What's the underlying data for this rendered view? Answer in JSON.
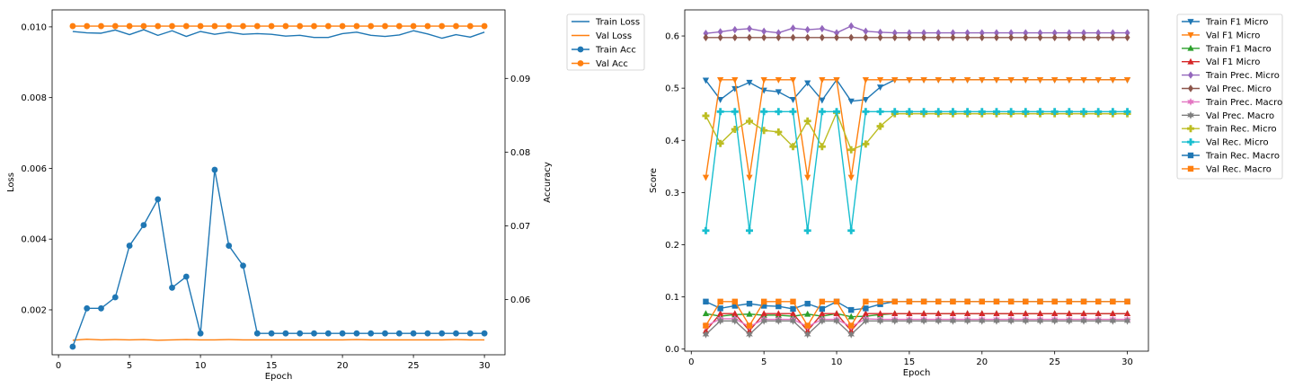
{
  "chart_data": [
    {
      "type": "line",
      "xlabel": "Epoch",
      "ylabel": "Loss",
      "y2label": "Accuracy",
      "x": [
        1,
        2,
        3,
        4,
        5,
        6,
        7,
        8,
        9,
        10,
        11,
        12,
        13,
        14,
        15,
        16,
        17,
        18,
        19,
        20,
        21,
        22,
        23,
        24,
        25,
        26,
        27,
        28,
        29,
        30
      ],
      "xticks": [
        0,
        5,
        10,
        15,
        20,
        25,
        30
      ],
      "xlim": [
        -0.45,
        31.45
      ],
      "ylim": [
        0.00073,
        0.01048
      ],
      "yticks": [
        0.002,
        0.004,
        0.006,
        0.008,
        0.01
      ],
      "y2lim": [
        0.0525,
        0.0993
      ],
      "y2ticks": [
        0.06,
        0.07,
        0.08,
        0.09
      ],
      "legend_position": "outside right",
      "series": [
        {
          "name": "Train Loss",
          "axis": "left",
          "color": "#1f77b4",
          "marker": "none",
          "values": [
            0.00987,
            0.00983,
            0.00982,
            0.00991,
            0.00978,
            0.00992,
            0.00976,
            0.00989,
            0.00973,
            0.00987,
            0.00979,
            0.00985,
            0.00979,
            0.00981,
            0.00979,
            0.00974,
            0.00976,
            0.0097,
            0.0097,
            0.00981,
            0.00985,
            0.00976,
            0.00973,
            0.00977,
            0.00989,
            0.0098,
            0.00968,
            0.00978,
            0.00971,
            0.00985
          ]
        },
        {
          "name": "Val Loss",
          "axis": "left",
          "color": "#ff7f0e",
          "marker": "none",
          "values": [
            0.00114,
            0.00117,
            0.00115,
            0.00116,
            0.00115,
            0.00116,
            0.00114,
            0.00115,
            0.00116,
            0.00115,
            0.00115,
            0.00116,
            0.00115,
            0.00115,
            0.00115,
            0.00115,
            0.00115,
            0.00115,
            0.00115,
            0.00115,
            0.00116,
            0.00115,
            0.00115,
            0.00115,
            0.00115,
            0.00115,
            0.00115,
            0.00116,
            0.00115,
            0.00115
          ]
        },
        {
          "name": "Train Acc",
          "axis": "right",
          "color": "#1f77b4",
          "marker": "circle",
          "values": [
            0.0536,
            0.0588,
            0.0588,
            0.0603,
            0.0673,
            0.0701,
            0.0736,
            0.0616,
            0.0631,
            0.0554,
            0.0776,
            0.0673,
            0.0646,
            0.0554,
            0.0554,
            0.0554,
            0.0554,
            0.0554,
            0.0554,
            0.0554,
            0.0554,
            0.0554,
            0.0554,
            0.0554,
            0.0554,
            0.0554,
            0.0554,
            0.0554,
            0.0554,
            0.0554
          ]
        },
        {
          "name": "Val Acc",
          "axis": "right",
          "color": "#ff7f0e",
          "marker": "circle",
          "values": [
            0.0971,
            0.0971,
            0.0971,
            0.0971,
            0.0971,
            0.0971,
            0.0971,
            0.0971,
            0.0971,
            0.0971,
            0.0971,
            0.0971,
            0.0971,
            0.0971,
            0.0971,
            0.0971,
            0.0971,
            0.0971,
            0.0971,
            0.0971,
            0.0971,
            0.0971,
            0.0971,
            0.0971,
            0.0971,
            0.0971,
            0.0971,
            0.0971,
            0.0971,
            0.0971
          ]
        }
      ]
    },
    {
      "type": "line",
      "xlabel": "Epoch",
      "ylabel": "Score",
      "x": [
        1,
        2,
        3,
        4,
        5,
        6,
        7,
        8,
        9,
        10,
        11,
        12,
        13,
        14,
        15,
        16,
        17,
        18,
        19,
        20,
        21,
        22,
        23,
        24,
        25,
        26,
        27,
        28,
        29,
        30
      ],
      "xticks": [
        0,
        5,
        10,
        15,
        20,
        25,
        30
      ],
      "xlim": [
        -0.45,
        31.45
      ],
      "ylim": [
        -0.004,
        0.65
      ],
      "yticks": [
        0.0,
        0.1,
        0.2,
        0.3,
        0.4,
        0.5,
        0.6
      ],
      "legend_position": "outside right",
      "series": [
        {
          "name": "Train F1 Micro",
          "color": "#1f77b4",
          "marker": "tri-down",
          "values": [
            0.515,
            0.478,
            0.499,
            0.511,
            0.496,
            0.493,
            0.478,
            0.51,
            0.477,
            0.516,
            0.475,
            0.478,
            0.502,
            0.516,
            0.516,
            0.516,
            0.516,
            0.516,
            0.516,
            0.516,
            0.516,
            0.516,
            0.516,
            0.516,
            0.516,
            0.516,
            0.516,
            0.516,
            0.516,
            0.516
          ]
        },
        {
          "name": "Val F1 Micro",
          "color": "#ff7f0e",
          "marker": "tri-down",
          "values": [
            0.329,
            0.516,
            0.516,
            0.329,
            0.516,
            0.516,
            0.516,
            0.329,
            0.516,
            0.516,
            0.329,
            0.516,
            0.516,
            0.516,
            0.516,
            0.516,
            0.516,
            0.516,
            0.516,
            0.516,
            0.516,
            0.516,
            0.516,
            0.516,
            0.516,
            0.516,
            0.516,
            0.516,
            0.516,
            0.516
          ]
        },
        {
          "name": "Train F1 Macro",
          "color": "#2ca02c",
          "marker": "tri-up",
          "values": [
            0.068,
            0.063,
            0.066,
            0.067,
            0.065,
            0.065,
            0.063,
            0.067,
            0.063,
            0.068,
            0.062,
            0.063,
            0.066,
            0.068,
            0.068,
            0.068,
            0.068,
            0.068,
            0.068,
            0.068,
            0.068,
            0.068,
            0.068,
            0.068,
            0.068,
            0.068,
            0.068,
            0.068,
            0.068,
            0.068
          ]
        },
        {
          "name": "Val F1 Micro",
          "color": "#d62728",
          "marker": "tri-up",
          "values": [
            0.035,
            0.068,
            0.068,
            0.035,
            0.068,
            0.068,
            0.068,
            0.035,
            0.068,
            0.068,
            0.035,
            0.068,
            0.068,
            0.068,
            0.068,
            0.068,
            0.068,
            0.068,
            0.068,
            0.068,
            0.068,
            0.068,
            0.068,
            0.068,
            0.068,
            0.068,
            0.068,
            0.068,
            0.068,
            0.068
          ]
        },
        {
          "name": "Train Prec. Micro",
          "color": "#9467bd",
          "marker": "diamond",
          "values": [
            0.605,
            0.608,
            0.612,
            0.614,
            0.609,
            0.606,
            0.615,
            0.612,
            0.614,
            0.606,
            0.619,
            0.609,
            0.607,
            0.606,
            0.606,
            0.606,
            0.606,
            0.606,
            0.606,
            0.606,
            0.606,
            0.606,
            0.606,
            0.606,
            0.606,
            0.606,
            0.606,
            0.606,
            0.606,
            0.606
          ]
        },
        {
          "name": "Val Prec. Micro",
          "color": "#8c564b",
          "marker": "diamond",
          "values": [
            0.597,
            0.597,
            0.597,
            0.597,
            0.597,
            0.597,
            0.597,
            0.597,
            0.597,
            0.597,
            0.597,
            0.597,
            0.597,
            0.597,
            0.597,
            0.597,
            0.597,
            0.597,
            0.597,
            0.597,
            0.597,
            0.597,
            0.597,
            0.597,
            0.597,
            0.597,
            0.597,
            0.597,
            0.597,
            0.597
          ]
        },
        {
          "name": "Train Prec. Macro",
          "color": "#e377c2",
          "marker": "star",
          "values": [
            0.044,
            0.058,
            0.058,
            0.043,
            0.057,
            0.057,
            0.057,
            0.043,
            0.057,
            0.057,
            0.043,
            0.058,
            0.057,
            0.057,
            0.057,
            0.057,
            0.057,
            0.057,
            0.057,
            0.057,
            0.057,
            0.057,
            0.057,
            0.057,
            0.057,
            0.057,
            0.057,
            0.057,
            0.057,
            0.057
          ]
        },
        {
          "name": "Val Prec. Macro",
          "color": "#7f7f7f",
          "marker": "star",
          "values": [
            0.028,
            0.054,
            0.054,
            0.028,
            0.054,
            0.054,
            0.054,
            0.028,
            0.054,
            0.054,
            0.028,
            0.054,
            0.054,
            0.054,
            0.054,
            0.054,
            0.054,
            0.054,
            0.054,
            0.054,
            0.054,
            0.054,
            0.054,
            0.054,
            0.054,
            0.054,
            0.054,
            0.054,
            0.054,
            0.054
          ]
        },
        {
          "name": "Train Rec. Micro",
          "color": "#bcbd22",
          "marker": "plus",
          "values": [
            0.447,
            0.394,
            0.421,
            0.437,
            0.419,
            0.416,
            0.388,
            0.437,
            0.388,
            0.453,
            0.382,
            0.393,
            0.427,
            0.451,
            0.451,
            0.451,
            0.451,
            0.451,
            0.451,
            0.451,
            0.451,
            0.451,
            0.451,
            0.451,
            0.451,
            0.451,
            0.451,
            0.451,
            0.451,
            0.451
          ]
        },
        {
          "name": "Val Rec. Micro",
          "color": "#17becf",
          "marker": "plus",
          "values": [
            0.227,
            0.455,
            0.455,
            0.227,
            0.455,
            0.455,
            0.455,
            0.227,
            0.455,
            0.455,
            0.227,
            0.455,
            0.455,
            0.455,
            0.455,
            0.455,
            0.455,
            0.455,
            0.455,
            0.455,
            0.455,
            0.455,
            0.455,
            0.455,
            0.455,
            0.455,
            0.455,
            0.455,
            0.455,
            0.455
          ]
        },
        {
          "name": "Train Rec. Macro",
          "color": "#1f77b4",
          "marker": "square",
          "values": [
            0.091,
            0.078,
            0.083,
            0.087,
            0.083,
            0.082,
            0.077,
            0.087,
            0.077,
            0.091,
            0.075,
            0.078,
            0.086,
            0.091,
            0.091,
            0.091,
            0.091,
            0.091,
            0.091,
            0.091,
            0.091,
            0.091,
            0.091,
            0.091,
            0.091,
            0.091,
            0.091,
            0.091,
            0.091,
            0.091
          ]
        },
        {
          "name": "Val Rec. Macro",
          "color": "#ff7f0e",
          "marker": "square",
          "values": [
            0.045,
            0.091,
            0.091,
            0.045,
            0.091,
            0.091,
            0.091,
            0.045,
            0.091,
            0.091,
            0.045,
            0.091,
            0.091,
            0.091,
            0.091,
            0.091,
            0.091,
            0.091,
            0.091,
            0.091,
            0.091,
            0.091,
            0.091,
            0.091,
            0.091,
            0.091,
            0.091,
            0.091,
            0.091,
            0.091
          ]
        }
      ]
    }
  ]
}
